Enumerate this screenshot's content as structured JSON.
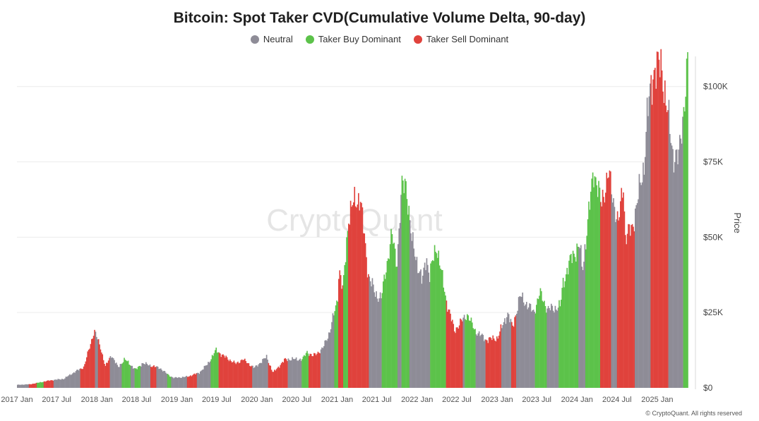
{
  "title": "Bitcoin: Spot Taker CVD(Cumulative Volume Delta, 90-day)",
  "legend": [
    {
      "label": "Neutral",
      "color": "#8e8c97"
    },
    {
      "label": "Taker Buy Dominant",
      "color": "#5cc24a"
    },
    {
      "label": "Taker Sell Dominant",
      "color": "#e0423c"
    }
  ],
  "watermark": "CryptoQuant",
  "footer": "© CryptoQuant. All rights reserved",
  "chart_data": {
    "type": "bar",
    "title": "Bitcoin: Spot Taker CVD(Cumulative Volume Delta, 90-day)",
    "ylabel": "Price",
    "ylim": [
      0,
      110000
    ],
    "y_ticks": [
      0,
      25000,
      50000,
      75000,
      100000
    ],
    "y_tick_labels": [
      "$0",
      "$25K",
      "$50K",
      "$75K",
      "$100K"
    ],
    "x_tick_labels": [
      "2017 Jan",
      "2017 Jul",
      "2018 Jan",
      "2018 Jul",
      "2019 Jan",
      "2019 Jul",
      "2020 Jan",
      "2020 Jul",
      "2021 Jan",
      "2021 Jul",
      "2022 Jan",
      "2022 Jul",
      "2023 Jan",
      "2023 Jul",
      "2024 Jan",
      "2024 Jul",
      "2025 Jan"
    ],
    "x_range": [
      "2017-01-01",
      "2025-05-20"
    ],
    "colors": {
      "neutral": "#8e8c97",
      "buy": "#5cc24a",
      "sell": "#e0423c"
    },
    "price_points": [
      [
        "2017-01-01",
        1000
      ],
      [
        "2017-03-01",
        1200
      ],
      [
        "2017-06-01",
        2500
      ],
      [
        "2017-08-01",
        3000
      ],
      [
        "2017-09-01",
        4500
      ],
      [
        "2017-11-01",
        7000
      ],
      [
        "2017-12-17",
        19000
      ],
      [
        "2018-01-15",
        13500
      ],
      [
        "2018-02-06",
        7000
      ],
      [
        "2018-03-05",
        11000
      ],
      [
        "2018-04-05",
        6800
      ],
      [
        "2018-05-05",
        9500
      ],
      [
        "2018-06-25",
        6000
      ],
      [
        "2018-07-25",
        8200
      ],
      [
        "2018-10-15",
        6500
      ],
      [
        "2018-11-20",
        4300
      ],
      [
        "2018-12-15",
        3300
      ],
      [
        "2019-02-15",
        3700
      ],
      [
        "2019-04-10",
        5000
      ],
      [
        "2019-05-20",
        8000
      ],
      [
        "2019-06-26",
        12500
      ],
      [
        "2019-08-01",
        10500
      ],
      [
        "2019-09-25",
        8000
      ],
      [
        "2019-10-26",
        9500
      ],
      [
        "2019-12-18",
        6600
      ],
      [
        "2020-02-12",
        10300
      ],
      [
        "2020-03-12",
        5000
      ],
      [
        "2020-05-08",
        9500
      ],
      [
        "2020-07-25",
        9500
      ],
      [
        "2020-08-15",
        12000
      ],
      [
        "2020-09-10",
        10500
      ],
      [
        "2020-10-25",
        13000
      ],
      [
        "2020-11-25",
        18500
      ],
      [
        "2020-12-31",
        29000
      ],
      [
        "2021-01-08",
        40000
      ],
      [
        "2021-01-25",
        32000
      ],
      [
        "2021-02-20",
        57000
      ],
      [
        "2021-03-13",
        61000
      ],
      [
        "2021-04-14",
        63500
      ],
      [
        "2021-05-20",
        38000
      ],
      [
        "2021-06-22",
        31000
      ],
      [
        "2021-07-20",
        30000
      ],
      [
        "2021-09-05",
        51000
      ],
      [
        "2021-09-28",
        41000
      ],
      [
        "2021-10-20",
        66000
      ],
      [
        "2021-11-10",
        68000
      ],
      [
        "2021-12-05",
        49000
      ],
      [
        "2022-01-22",
        35000
      ],
      [
        "2022-02-10",
        44000
      ],
      [
        "2022-02-24",
        37000
      ],
      [
        "2022-03-28",
        47500
      ],
      [
        "2022-05-12",
        29000
      ],
      [
        "2022-06-18",
        19000
      ],
      [
        "2022-08-15",
        24500
      ],
      [
        "2022-09-20",
        19000
      ],
      [
        "2022-11-09",
        16000
      ],
      [
        "2022-12-31",
        16500
      ],
      [
        "2023-02-16",
        24800
      ],
      [
        "2023-03-10",
        20000
      ],
      [
        "2023-04-14",
        30500
      ],
      [
        "2023-06-15",
        25000
      ],
      [
        "2023-07-13",
        31500
      ],
      [
        "2023-08-18",
        26000
      ],
      [
        "2023-10-15",
        27000
      ],
      [
        "2023-10-25",
        34500
      ],
      [
        "2023-12-08",
        44000
      ],
      [
        "2024-01-11",
        47000
      ],
      [
        "2024-01-23",
        39000
      ],
      [
        "2024-02-28",
        62000
      ],
      [
        "2024-03-14",
        73000
      ],
      [
        "2024-04-17",
        61000
      ],
      [
        "2024-05-21",
        71000
      ],
      [
        "2024-07-05",
        54000
      ],
      [
        "2024-07-29",
        69000
      ],
      [
        "2024-08-05",
        50000
      ],
      [
        "2024-09-06",
        53000
      ],
      [
        "2024-10-29",
        73000
      ],
      [
        "2024-11-13",
        90000
      ],
      [
        "2024-12-17",
        107000
      ],
      [
        "2025-01-20",
        106000
      ],
      [
        "2025-03-10",
        78000
      ],
      [
        "2025-04-07",
        76000
      ],
      [
        "2025-05-20",
        109000
      ]
    ],
    "regimes": [
      [
        "2017-01-01",
        "neutral"
      ],
      [
        "2017-02-20",
        "sell"
      ],
      [
        "2017-04-01",
        "buy"
      ],
      [
        "2017-05-01",
        "sell"
      ],
      [
        "2017-06-15",
        "neutral"
      ],
      [
        "2017-10-15",
        "sell"
      ],
      [
        "2017-12-20",
        "neutral"
      ],
      [
        "2018-01-05",
        "sell"
      ],
      [
        "2018-02-25",
        "neutral"
      ],
      [
        "2018-04-20",
        "buy"
      ],
      [
        "2018-06-01",
        "neutral"
      ],
      [
        "2018-06-20",
        "buy"
      ],
      [
        "2018-07-15",
        "neutral"
      ],
      [
        "2018-09-01",
        "sell"
      ],
      [
        "2018-09-25",
        "neutral"
      ],
      [
        "2018-11-15",
        "buy"
      ],
      [
        "2018-12-05",
        "neutral"
      ],
      [
        "2019-02-15",
        "sell"
      ],
      [
        "2019-04-01",
        "neutral"
      ],
      [
        "2019-06-01",
        "buy"
      ],
      [
        "2019-07-10",
        "sell"
      ],
      [
        "2019-12-10",
        "neutral"
      ],
      [
        "2020-02-20",
        "sell"
      ],
      [
        "2020-05-20",
        "neutral"
      ],
      [
        "2020-07-20",
        "buy"
      ],
      [
        "2020-08-20",
        "sell"
      ],
      [
        "2020-10-15",
        "neutral"
      ],
      [
        "2020-12-15",
        "buy"
      ],
      [
        "2021-01-05",
        "sell"
      ],
      [
        "2021-01-25",
        "buy"
      ],
      [
        "2021-02-20",
        "sell"
      ],
      [
        "2021-05-25",
        "neutral"
      ],
      [
        "2021-07-20",
        "buy"
      ],
      [
        "2021-10-01",
        "neutral"
      ],
      [
        "2021-10-20",
        "buy"
      ],
      [
        "2021-11-25",
        "neutral"
      ],
      [
        "2022-03-01",
        "buy"
      ],
      [
        "2022-05-10",
        "sell"
      ],
      [
        "2022-07-25",
        "neutral"
      ],
      [
        "2022-08-05",
        "buy"
      ],
      [
        "2022-09-25",
        "neutral"
      ],
      [
        "2022-11-05",
        "sell"
      ],
      [
        "2023-01-20",
        "neutral"
      ],
      [
        "2023-03-05",
        "sell"
      ],
      [
        "2023-03-25",
        "neutral"
      ],
      [
        "2023-06-20",
        "buy"
      ],
      [
        "2023-08-15",
        "neutral"
      ],
      [
        "2023-10-05",
        "buy"
      ],
      [
        "2024-01-05",
        "neutral"
      ],
      [
        "2024-02-05",
        "buy"
      ],
      [
        "2024-04-15",
        "sell"
      ],
      [
        "2024-06-01",
        "neutral"
      ],
      [
        "2024-07-01",
        "sell"
      ],
      [
        "2024-09-20",
        "neutral"
      ],
      [
        "2024-12-01",
        "sell"
      ],
      [
        "2025-02-20",
        "neutral"
      ],
      [
        "2025-04-25",
        "buy"
      ]
    ]
  }
}
